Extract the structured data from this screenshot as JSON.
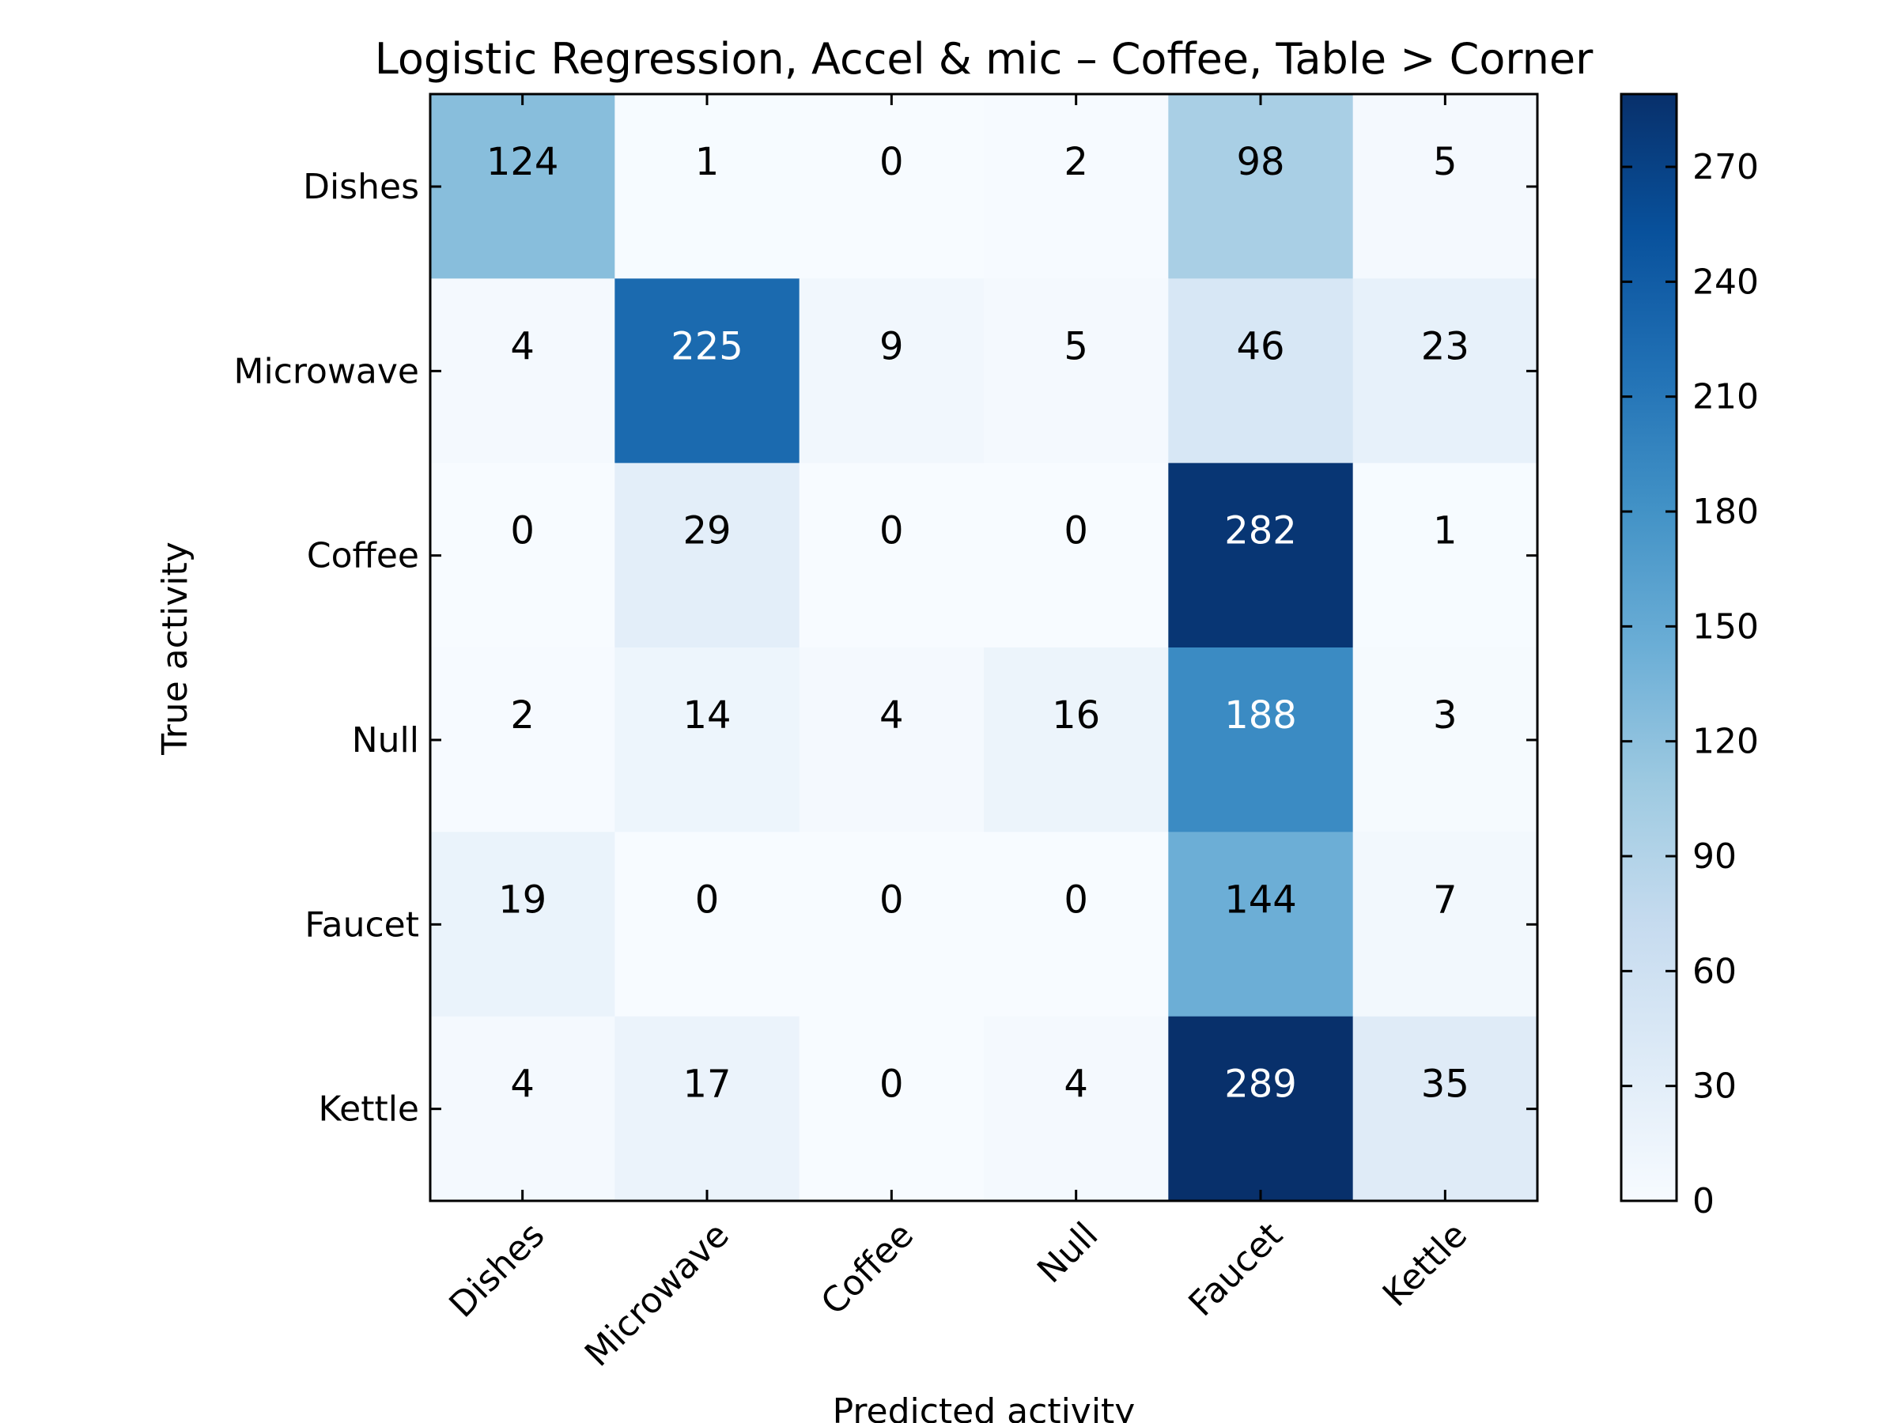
{
  "chart_data": {
    "type": "heatmap",
    "title": "Logistic Regression, Accel & mic – Coffee, Table > Corner",
    "xlabel": "Predicted activity",
    "ylabel": "True activity",
    "x_categories": [
      "Dishes",
      "Microwave",
      "Coffee",
      "Null",
      "Faucet",
      "Kettle"
    ],
    "y_categories": [
      "Dishes",
      "Microwave",
      "Coffee",
      "Null",
      "Faucet",
      "Kettle"
    ],
    "values": [
      [
        124,
        1,
        0,
        2,
        98,
        5
      ],
      [
        4,
        225,
        9,
        5,
        46,
        23
      ],
      [
        0,
        29,
        0,
        0,
        282,
        1
      ],
      [
        2,
        14,
        4,
        16,
        188,
        3
      ],
      [
        19,
        0,
        0,
        0,
        144,
        7
      ],
      [
        4,
        17,
        0,
        4,
        289,
        35
      ]
    ],
    "colormap": "Blues",
    "color_range": [
      0,
      289
    ],
    "colorbar_ticks": [
      0,
      30,
      60,
      90,
      120,
      150,
      180,
      210,
      240,
      270
    ],
    "text_color_light": "#ffffff",
    "text_color_dark": "#000000"
  }
}
